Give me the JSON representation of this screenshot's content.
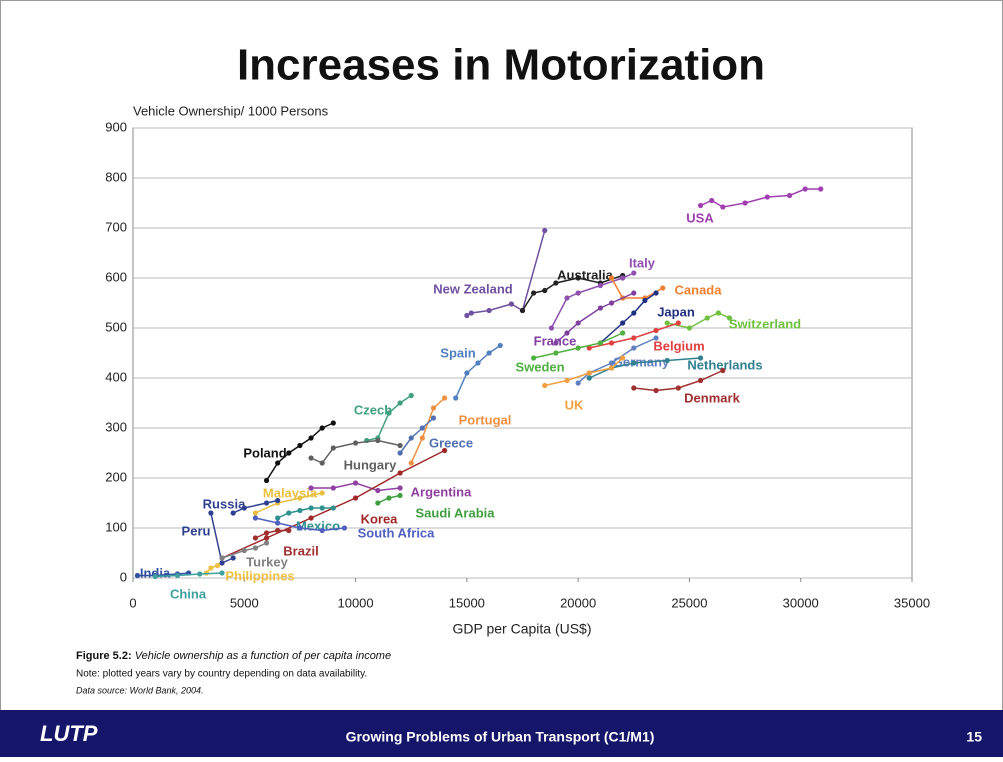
{
  "slide": {
    "title": "Increases in Motorization",
    "footer": {
      "logo": "LUTP",
      "text": "Growing Problems of Urban Transport (C1/M1)",
      "page": "15"
    }
  },
  "caption": {
    "label": "Figure 5.2:",
    "text": "Vehicle ownership as a function of per capita income",
    "note": "Note: plotted years vary by country depending on data availability.",
    "source": "Data source: World Bank, 2004."
  },
  "chart_data": {
    "type": "line",
    "y_label": "Vehicle Ownership/ 1000 Persons",
    "x_label": "GDP per Capita (US$)",
    "xlim": [
      0,
      35000
    ],
    "xticks": [
      0,
      5000,
      10000,
      15000,
      20000,
      25000,
      30000,
      35000
    ],
    "ylim": [
      0,
      900
    ],
    "yticks": [
      0,
      100,
      200,
      300,
      400,
      500,
      600,
      700,
      800,
      900
    ],
    "grid": true,
    "series": [
      {
        "name": "USA",
        "color": "#a040b0",
        "x": [
          25500,
          26000,
          26500,
          27500,
          28500,
          29500,
          30200,
          30900
        ],
        "values": [
          745,
          755,
          742,
          750,
          762,
          765,
          778,
          778
        ]
      },
      {
        "name": "New Zealand",
        "color": "#7050a0",
        "x": [
          15000,
          15200,
          16000,
          17000,
          17500,
          18500
        ],
        "values": [
          525,
          530,
          535,
          548,
          535,
          695
        ]
      },
      {
        "name": "Australia",
        "color": "#222222",
        "x": [
          17500,
          18000,
          18500,
          19000,
          20000,
          21000,
          22000
        ],
        "values": [
          535,
          570,
          575,
          590,
          600,
          590,
          605
        ]
      },
      {
        "name": "Italy",
        "color": "#9050b0",
        "x": [
          18800,
          19500,
          20000,
          21000,
          22000,
          22500
        ],
        "values": [
          500,
          560,
          570,
          585,
          600,
          610
        ]
      },
      {
        "name": "Canada",
        "color": "#f08030",
        "x": [
          21500,
          22000,
          23000,
          23800
        ],
        "values": [
          600,
          560,
          560,
          580
        ]
      },
      {
        "name": "Japan",
        "color": "#203080",
        "x": [
          21000,
          22000,
          22500,
          23000,
          23500
        ],
        "values": [
          470,
          510,
          530,
          555,
          570
        ]
      },
      {
        "name": "Switzerland",
        "color": "#70c040",
        "x": [
          24000,
          25000,
          25800,
          26300,
          26800
        ],
        "values": [
          510,
          500,
          520,
          530,
          520
        ]
      },
      {
        "name": "France",
        "color": "#8040a0",
        "x": [
          19000,
          19500,
          20000,
          21000,
          21500,
          22500
        ],
        "values": [
          470,
          490,
          510,
          540,
          550,
          570
        ]
      },
      {
        "name": "Belgium",
        "color": "#e04040",
        "x": [
          20500,
          21500,
          22500,
          23500,
          24500
        ],
        "values": [
          460,
          470,
          480,
          495,
          510
        ]
      },
      {
        "name": "Spain",
        "color": "#5080c0",
        "x": [
          14500,
          15000,
          15500,
          16000,
          16500
        ],
        "values": [
          360,
          410,
          430,
          450,
          465
        ]
      },
      {
        "name": "Sweden",
        "color": "#50b040",
        "x": [
          18000,
          19000,
          20000,
          21000,
          22000
        ],
        "values": [
          440,
          450,
          460,
          470,
          490
        ]
      },
      {
        "name": "Germany",
        "color": "#6080c0",
        "x": [
          20000,
          20500,
          21500,
          22500,
          23500
        ],
        "values": [
          390,
          410,
          430,
          460,
          480
        ]
      },
      {
        "name": "Netherlands",
        "color": "#308090",
        "x": [
          20500,
          21500,
          22500,
          24000,
          25500
        ],
        "values": [
          400,
          420,
          430,
          435,
          440
        ]
      },
      {
        "name": "UK",
        "color": "#f0a040",
        "x": [
          18500,
          19500,
          20500,
          21500,
          22000
        ],
        "values": [
          385,
          395,
          410,
          420,
          440
        ]
      },
      {
        "name": "Denmark",
        "color": "#a03030",
        "x": [
          22500,
          23500,
          24500,
          25500,
          26500
        ],
        "values": [
          380,
          375,
          380,
          395,
          415
        ]
      },
      {
        "name": "Czech",
        "color": "#40a080",
        "x": [
          10500,
          11000,
          11500,
          12000,
          12500
        ],
        "values": [
          275,
          280,
          330,
          350,
          365
        ]
      },
      {
        "name": "Portugal",
        "color": "#f09040",
        "x": [
          12500,
          13000,
          13500,
          14000
        ],
        "values": [
          230,
          280,
          340,
          360
        ]
      },
      {
        "name": "Greece",
        "color": "#5070b0",
        "x": [
          12000,
          12500,
          13000,
          13500
        ],
        "values": [
          250,
          280,
          300,
          320
        ]
      },
      {
        "name": "Poland",
        "color": "#111111",
        "x": [
          6000,
          6500,
          7000,
          7500,
          8000,
          8500,
          9000
        ],
        "values": [
          195,
          230,
          250,
          265,
          280,
          300,
          310
        ]
      },
      {
        "name": "Hungary",
        "color": "#606060",
        "x": [
          8000,
          8500,
          9000,
          10000,
          11000,
          12000
        ],
        "values": [
          240,
          230,
          260,
          270,
          275,
          265
        ]
      },
      {
        "name": "Malaysia",
        "color": "#e8c040",
        "x": [
          5500,
          6500,
          7500,
          8500
        ],
        "values": [
          130,
          150,
          160,
          170
        ]
      },
      {
        "name": "Argentina",
        "color": "#9040a0",
        "x": [
          8000,
          9000,
          10000,
          11000,
          12000
        ],
        "values": [
          180,
          180,
          190,
          175,
          180
        ]
      },
      {
        "name": "Russia",
        "color": "#304090",
        "x": [
          4500,
          5000,
          6000,
          6500
        ],
        "values": [
          130,
          140,
          150,
          155
        ]
      },
      {
        "name": "Korea",
        "color": "#a02828",
        "x": [
          4000,
          6000,
          8000,
          10000,
          12000,
          14000
        ],
        "values": [
          40,
          80,
          120,
          160,
          210,
          255
        ]
      },
      {
        "name": "Saudi Arabia",
        "color": "#40a040",
        "x": [
          11000,
          11500,
          12000
        ],
        "values": [
          150,
          160,
          165
        ]
      },
      {
        "name": "Mexico",
        "color": "#309090",
        "x": [
          6500,
          7000,
          7500,
          8000,
          8500,
          9000
        ],
        "values": [
          120,
          130,
          135,
          140,
          140,
          140
        ]
      },
      {
        "name": "South Africa",
        "color": "#5060c0",
        "x": [
          5500,
          6500,
          7500,
          8500,
          9500
        ],
        "values": [
          120,
          110,
          100,
          95,
          100
        ]
      },
      {
        "name": "Peru",
        "color": "#304090",
        "x": [
          3500,
          4000,
          4500
        ],
        "values": [
          130,
          30,
          40
        ]
      },
      {
        "name": "Brazil",
        "color": "#a03030",
        "x": [
          5500,
          6000,
          6500,
          7000
        ],
        "values": [
          80,
          90,
          95,
          95
        ]
      },
      {
        "name": "Turkey",
        "color": "#808080",
        "x": [
          4000,
          5000,
          5500,
          6000
        ],
        "values": [
          40,
          55,
          60,
          70
        ]
      },
      {
        "name": "India",
        "color": "#3050a0",
        "x": [
          200,
          1000,
          2000,
          2500
        ],
        "values": [
          5,
          5,
          8,
          10
        ]
      },
      {
        "name": "Philippines",
        "color": "#f0c040",
        "x": [
          3300,
          3500,
          3800
        ],
        "values": [
          10,
          20,
          25
        ]
      },
      {
        "name": "China",
        "color": "#40a0a0",
        "x": [
          1000,
          2000,
          3000,
          4000
        ],
        "values": [
          3,
          5,
          8,
          10
        ]
      }
    ]
  }
}
